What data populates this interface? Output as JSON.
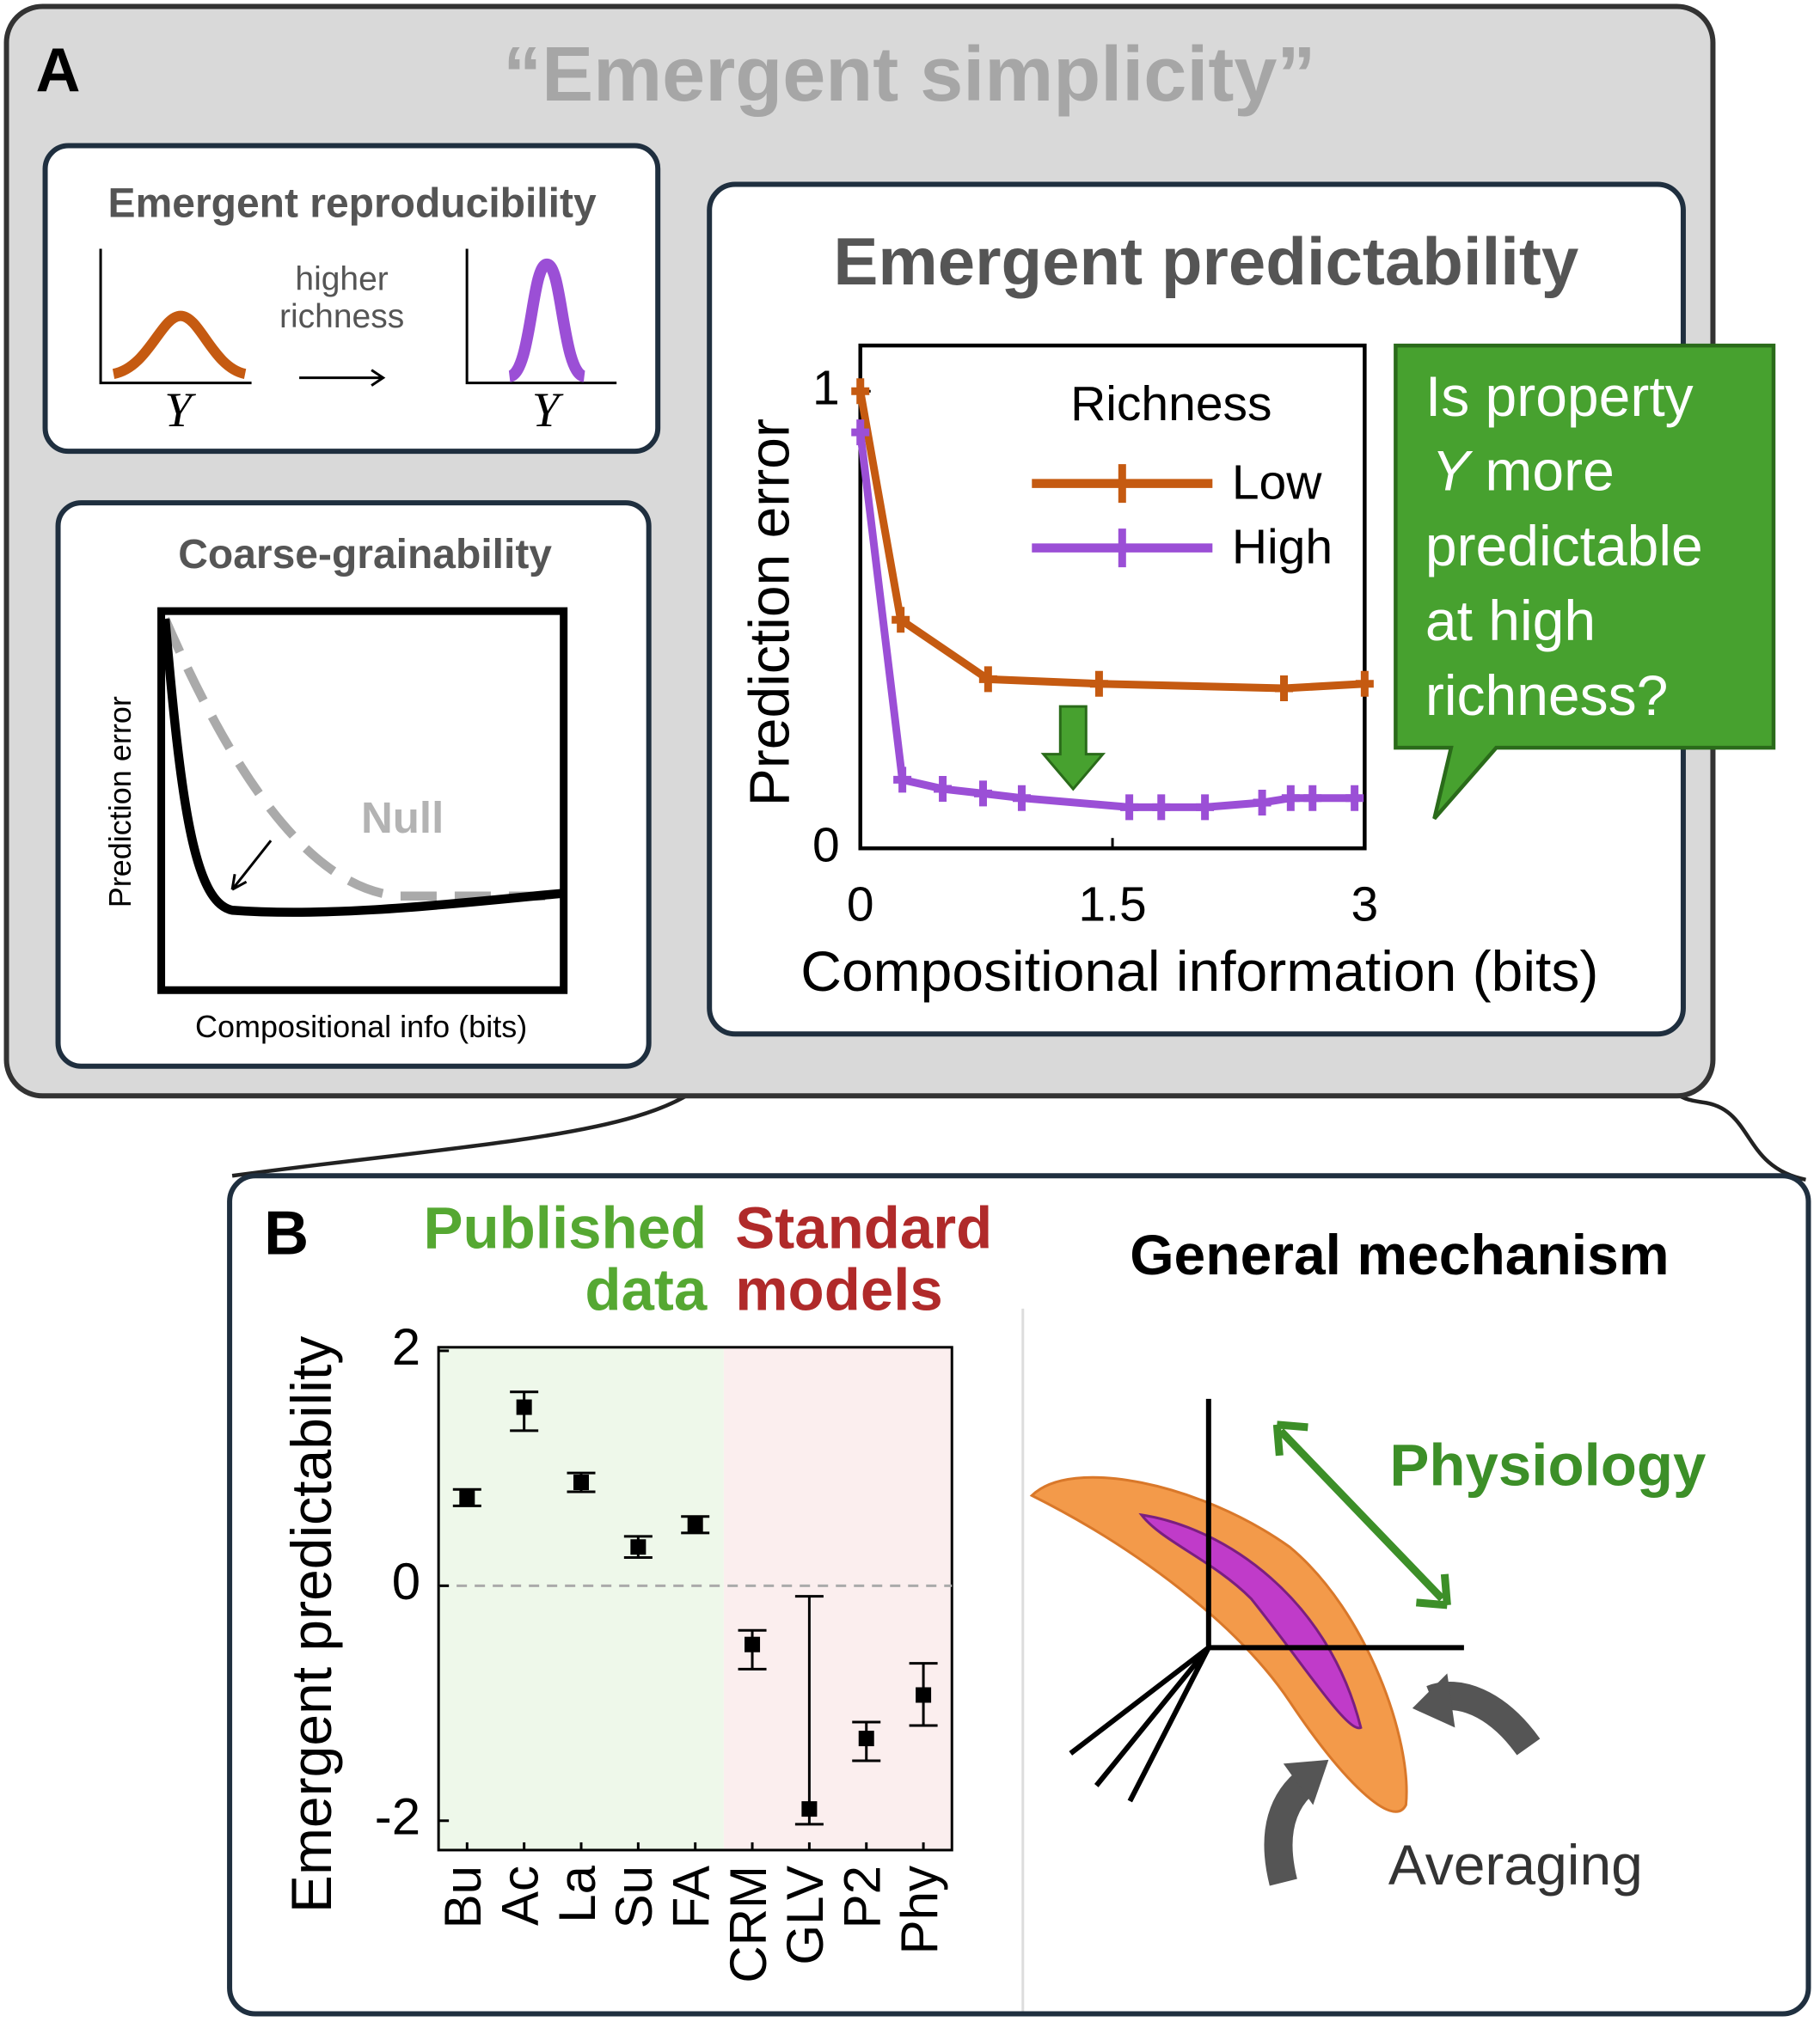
{
  "panel_a": {
    "label": "A",
    "title": "“Emergent simplicity”",
    "reproducibility": {
      "title": "Emergent reproducibility",
      "arrow_label": [
        "higher",
        "richness"
      ],
      "axis_label": "Y"
    },
    "coarse_grainability": {
      "title": "Coarse-grainability",
      "y_label": "Prediction error",
      "x_label": "Compositional info (bits)",
      "null_label": "Null"
    },
    "predictability_title": "Emergent predictability",
    "callout": {
      "first": "Is property",
      "variable": "Y",
      "rest": [
        "more",
        "predictable",
        "at high",
        "richness?"
      ]
    }
  },
  "panel_b": {
    "label": "B",
    "published": [
      "Published",
      "data"
    ],
    "standard": [
      "Standard",
      "models"
    ],
    "mechanism_title": "General mechanism",
    "physiology": "Physiology",
    "averaging": "Averaging"
  },
  "chart_data": [
    {
      "type": "line",
      "x_label": "Compositional information (bits)",
      "y_label": "Prediction error",
      "legend_title": "Richness",
      "xlim": [
        0,
        3
      ],
      "ylim": [
        0,
        1.1
      ],
      "xticks": [
        0,
        1.5,
        3
      ],
      "yticks": [
        0,
        1
      ],
      "series": [
        {
          "name": "Low",
          "color": "#c55a11",
          "x": [
            0,
            0.24,
            0.76,
            1.42,
            2.52,
            3
          ],
          "values": [
            1.0,
            0.5,
            0.37,
            0.36,
            0.35,
            0.36
          ]
        },
        {
          "name": "High",
          "color": "#9b4fd6",
          "x": [
            0,
            0.25,
            0.49,
            0.73,
            0.96,
            1.6,
            1.79,
            2.05,
            2.39,
            2.56,
            2.69,
            2.94
          ],
          "values": [
            0.91,
            0.15,
            0.13,
            0.12,
            0.11,
            0.09,
            0.09,
            0.09,
            0.1,
            0.11,
            0.11,
            0.11
          ]
        }
      ]
    },
    {
      "type": "errorbar",
      "y_label": "Emergent predictability",
      "zero_line": true,
      "categories": [
        "Bu",
        "Ac",
        "La",
        "Su",
        "FA",
        "CRM",
        "GLV",
        "P2",
        "Phy"
      ],
      "values": [
        0.75,
        1.52,
        0.88,
        0.33,
        0.52,
        -0.5,
        -1.9,
        -1.3,
        -0.93
      ],
      "lower": [
        0.68,
        1.32,
        0.8,
        0.24,
        0.45,
        -0.71,
        -2.03,
        -1.49,
        -1.19
      ],
      "upper": [
        0.82,
        1.65,
        0.96,
        0.42,
        0.59,
        -0.38,
        -0.09,
        -1.16,
        -0.66
      ],
      "ylim": [
        -2.25,
        2.03
      ],
      "yticks": [
        -2,
        0,
        2
      ]
    }
  ]
}
